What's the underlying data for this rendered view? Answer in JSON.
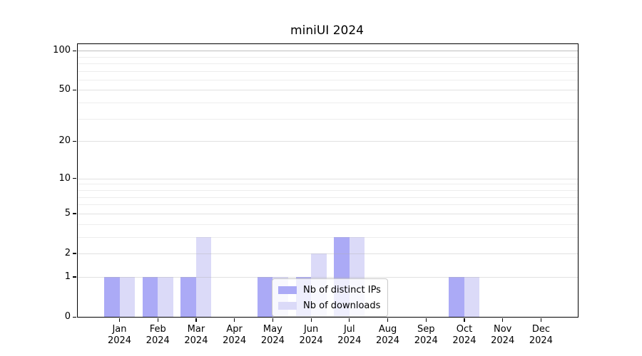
{
  "title": "miniUI 2024",
  "colors": {
    "ips_bar": "#abaaf6",
    "downloads_bar": "#dbdaf8",
    "grid_major": "rgba(175,175,175,0.38)",
    "grid_minor": "rgba(175,175,175,0.22)",
    "grid_top": "rgba(130,130,130,0.52)",
    "axis": "#000000"
  },
  "legend": {
    "items": [
      {
        "label": "Nb of distinct IPs",
        "series": "ips"
      },
      {
        "label": "Nb of downloads",
        "series": "downloads"
      }
    ]
  },
  "y_axis": {
    "major_ticks": [
      0,
      1,
      2,
      5,
      10,
      20,
      50,
      100
    ],
    "minor_gridlines": [
      3,
      4,
      6,
      7,
      8,
      9,
      30,
      40,
      60,
      70,
      80,
      90
    ],
    "top_gridline": 100,
    "scale": "log1p",
    "max_value": 112
  },
  "x_axis": {
    "months": [
      {
        "month": "Jan",
        "year": "2024"
      },
      {
        "month": "Feb",
        "year": "2024"
      },
      {
        "month": "Mar",
        "year": "2024"
      },
      {
        "month": "Apr",
        "year": "2024"
      },
      {
        "month": "May",
        "year": "2024"
      },
      {
        "month": "Jun",
        "year": "2024"
      },
      {
        "month": "Jul",
        "year": "2024"
      },
      {
        "month": "Aug",
        "year": "2024"
      },
      {
        "month": "Sep",
        "year": "2024"
      },
      {
        "month": "Oct",
        "year": "2024"
      },
      {
        "month": "Nov",
        "year": "2024"
      },
      {
        "month": "Dec",
        "year": "2024"
      }
    ]
  },
  "chart_data": {
    "type": "bar",
    "title": "miniUI 2024",
    "categories": [
      "Jan 2024",
      "Feb 2024",
      "Mar 2024",
      "Apr 2024",
      "May 2024",
      "Jun 2024",
      "Jul 2024",
      "Aug 2024",
      "Sep 2024",
      "Oct 2024",
      "Nov 2024",
      "Dec 2024"
    ],
    "series": [
      {
        "name": "Nb of distinct IPs",
        "color": "#abaaf6",
        "values": [
          1,
          1,
          1,
          0,
          1,
          1,
          3,
          0,
          0,
          1,
          0,
          0
        ]
      },
      {
        "name": "Nb of downloads",
        "color": "#dbdaf8",
        "values": [
          1,
          1,
          3,
          0,
          1,
          2,
          3,
          0,
          0,
          1,
          0,
          0
        ]
      }
    ],
    "xlabel": "",
    "ylabel": "",
    "yscale": "log-like (ticks 0,1,2,5,10,20,50,100)",
    "ylim": [
      0,
      112
    ],
    "grid": true,
    "legend_position": "lower center"
  }
}
